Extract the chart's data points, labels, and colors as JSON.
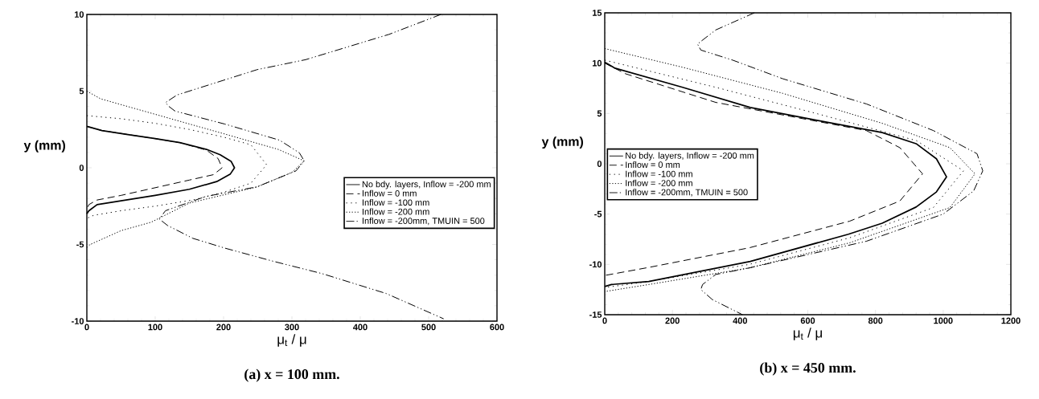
{
  "chart_data": [
    {
      "type": "line",
      "title": "(a) x = 100 mm.",
      "xlabel": "μ$_{t}$ / μ",
      "ylabel": "y  (mm)",
      "xlim": [
        0,
        600
      ],
      "ylim": [
        -10,
        10
      ],
      "xticks": [
        0,
        100,
        200,
        300,
        400,
        500,
        600
      ],
      "yticks": [
        -10,
        -5,
        0,
        5,
        10
      ],
      "legend": "right",
      "series": [
        {
          "name": "No bdy. layers, Inflow = -200 mm",
          "color": "#000000",
          "line_style": "solid",
          "x": [
            0,
            22,
            60,
            100,
            136,
            175,
            195,
            211,
            216,
            210,
            190,
            150,
            100,
            50,
            15,
            3,
            0
          ],
          "values": [
            2.7,
            2.43,
            2.17,
            1.9,
            1.64,
            1.2,
            0.85,
            0.42,
            0,
            -0.4,
            -0.9,
            -1.4,
            -1.8,
            -2.15,
            -2.4,
            -2.8,
            -3.0
          ]
        },
        {
          "name": "Inflow = 0 mm",
          "color": "#000000",
          "line_style": "dashed",
          "x": [
            0,
            22,
            60,
            100,
            136,
            175,
            192,
            198,
            185,
            150,
            90,
            50,
            15,
            3,
            0
          ],
          "values": [
            2.7,
            2.43,
            2.17,
            1.9,
            1.64,
            1.15,
            0.6,
            0,
            -0.45,
            -0.8,
            -1.4,
            -1.8,
            -2.1,
            -2.4,
            -2.7
          ]
        },
        {
          "name": "Inflow = -100 mm",
          "color": "#000000",
          "line_style": "loosely dotted",
          "x": [
            0,
            50,
            100,
            150,
            200,
            240,
            263,
            240,
            200,
            155,
            100,
            50,
            10,
            0
          ],
          "values": [
            3.4,
            3.2,
            2.9,
            2.5,
            2.0,
            1.5,
            0.2,
            -1.0,
            -1.6,
            -2.1,
            -2.5,
            -2.8,
            -3.1,
            -3.3
          ]
        },
        {
          "name": "Inflow = -200 mm",
          "color": "#000000",
          "line_style": "dotted",
          "x": [
            0,
            20,
            99,
            202,
            280,
            318,
            300,
            249,
            150,
            94,
            50,
            5,
            0
          ],
          "values": [
            5.0,
            4.5,
            3.5,
            2.2,
            1.2,
            0.45,
            -0.3,
            -1.25,
            -2.3,
            -3.55,
            -4.1,
            -5.0,
            -5.2
          ]
        },
        {
          "name": "Inflow = -200mm, TMUIN = 500",
          "color": "#000000",
          "line_style": "dashdotdotted",
          "x": [
            518,
            442,
            320,
            249,
            132,
            115,
            120,
            129,
            202,
            282,
            311,
            318,
            306,
            249,
            174,
            115,
            106,
            118,
            155,
            202,
            273,
            344,
            438,
            522
          ],
          "values": [
            10,
            8.7,
            7.05,
            6.4,
            4.75,
            4.25,
            4.0,
            3.7,
            2.85,
            1.8,
            0.97,
            0.45,
            -0.2,
            -1.24,
            -1.87,
            -2.8,
            -3.34,
            -3.76,
            -4.6,
            -5.24,
            -6.1,
            -6.9,
            -8.2,
            -9.85
          ]
        }
      ]
    },
    {
      "type": "line",
      "title": "(b) x = 450 mm.",
      "xlabel": "μ$_{t}$ / μ",
      "ylabel": "y  (mm)",
      "xlim": [
        0,
        1200
      ],
      "ylim": [
        -15,
        15
      ],
      "xticks": [
        0,
        200,
        400,
        600,
        800,
        1000,
        1200
      ],
      "yticks": [
        -15,
        -10,
        -5,
        0,
        5,
        10,
        15
      ],
      "legend": "left",
      "series": [
        {
          "name": "No bdy. layers, Inflow = -200 mm",
          "color": "#000000",
          "line_style": "solid",
          "x": [
            0,
            30,
            230,
            430,
            630,
            820,
            920,
            980,
            1010,
            980,
            920,
            820,
            720,
            430,
            130,
            20,
            0
          ],
          "values": [
            10.1,
            9.5,
            7.6,
            5.6,
            4.3,
            3.1,
            2.0,
            0.5,
            -1.3,
            -2.8,
            -4.3,
            -5.9,
            -7.0,
            -9.7,
            -11.7,
            -12.0,
            -12.2
          ]
        },
        {
          "name": "Inflow = 0 mm",
          "color": "#000000",
          "line_style": "dashed",
          "x": [
            0,
            61,
            328,
            773,
            872,
            939,
            872,
            724,
            427,
            130,
            0
          ],
          "values": [
            10,
            8.95,
            6.1,
            3.3,
            1.6,
            -1.0,
            -3.7,
            -5.7,
            -8.35,
            -10.3,
            -11.1
          ]
        },
        {
          "name": "Inflow = -100 mm",
          "color": "#000000",
          "line_style": "loosely dotted",
          "x": [
            0,
            328,
            625,
            921,
            1060,
            971,
            724,
            427,
            130,
            0
          ],
          "values": [
            10.3,
            7.6,
            5.0,
            2.3,
            -0.7,
            -4.35,
            -7.35,
            -10.0,
            -11.7,
            -12.3
          ]
        },
        {
          "name": "Inflow = -200 mm",
          "color": "#000000",
          "line_style": "dotted",
          "x": [
            0,
            229,
            526,
            822,
            1020,
            1094,
            1020,
            724,
            427,
            130,
            0
          ],
          "values": [
            11.45,
            9.6,
            7.0,
            4.0,
            1.6,
            -1.0,
            -4.35,
            -7.85,
            -10.35,
            -12.0,
            -12.7
          ]
        },
        {
          "name": "Inflow = -200mm, TMUIN = 500",
          "color": "#000000",
          "line_style": "dashdotdotted",
          "x": [
            442,
            328,
            274,
            284,
            378,
            526,
            773,
            971,
            1100,
            1117,
            1090,
            1000,
            773,
            427,
            328,
            289,
            284,
            318,
            407
          ],
          "values": [
            15,
            13.3,
            11.9,
            11.3,
            10.3,
            8.45,
            5.95,
            3.3,
            1.0,
            -0.7,
            -2.7,
            -5.0,
            -7.7,
            -10.35,
            -11.0,
            -12.0,
            -12.5,
            -13.5,
            -15
          ]
        }
      ]
    }
  ]
}
